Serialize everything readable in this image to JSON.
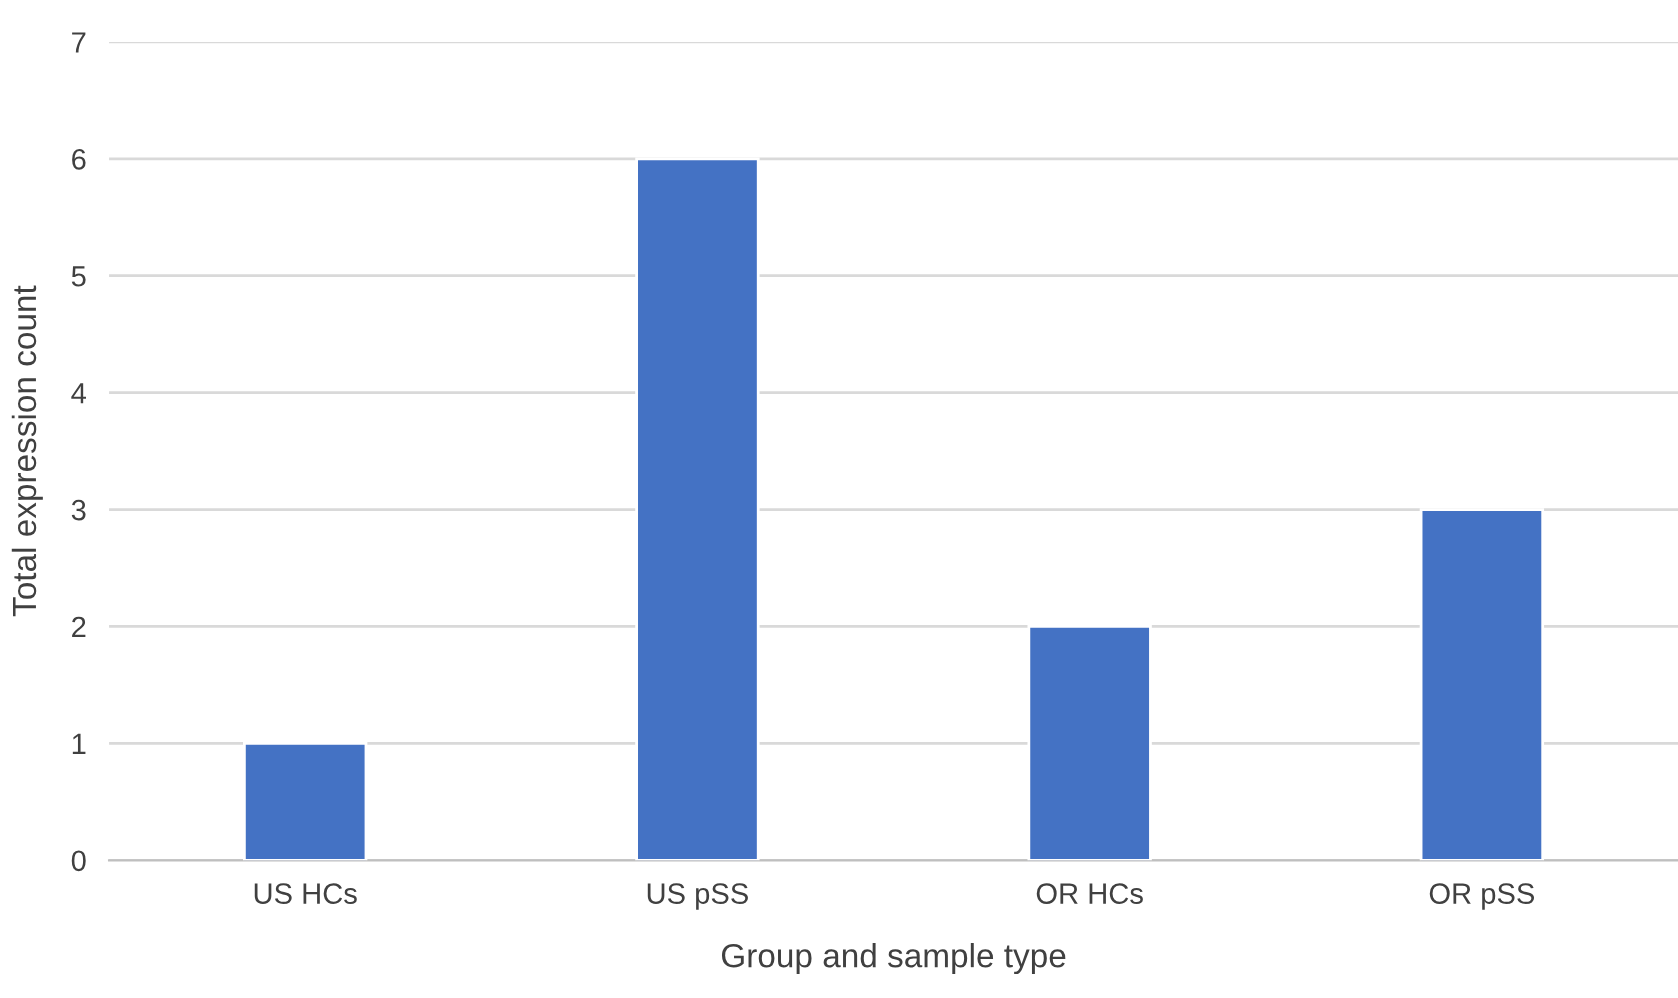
{
  "chart_data": {
    "type": "bar",
    "xlabel": "Group and sample type",
    "ylabel": "Total expression count",
    "categories": [
      "US HCs",
      "US pSS",
      "OR HCs",
      "OR pSS"
    ],
    "values": [
      1,
      6,
      2,
      3
    ],
    "color": "#4472c4",
    "ylim": [
      0,
      7
    ],
    "yticks": [
      0,
      1,
      2,
      3,
      4,
      5,
      6,
      7
    ],
    "grid": "y"
  }
}
